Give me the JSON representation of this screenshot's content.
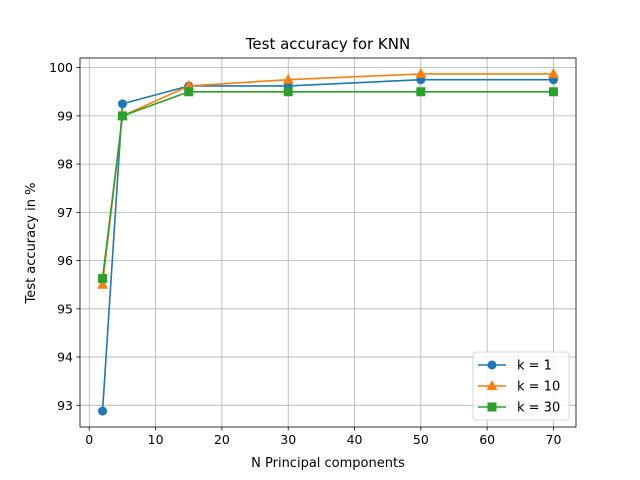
{
  "chart_data": {
    "type": "line",
    "title": "Test accuracy for KNN",
    "xlabel": "N Principal components",
    "ylabel": "Test accuracy in %",
    "xlim": [
      -1.4,
      73.4
    ],
    "ylim": [
      92.55,
      100.2
    ],
    "xticks": [
      0,
      10,
      20,
      30,
      40,
      50,
      60,
      70
    ],
    "yticks": [
      93,
      94,
      95,
      96,
      97,
      98,
      99,
      100
    ],
    "grid": true,
    "legend_position": "lower-right",
    "x": [
      2,
      5,
      15,
      30,
      50,
      70
    ],
    "series": [
      {
        "name": "k = 1",
        "values": [
          92.88,
          99.25,
          99.62,
          99.62,
          99.75,
          99.75
        ],
        "color": "#1f77b4",
        "marker": "circle"
      },
      {
        "name": "k = 10",
        "values": [
          95.5,
          99.0,
          99.62,
          99.75,
          99.87,
          99.87
        ],
        "color": "#ff7f0e",
        "marker": "triangle"
      },
      {
        "name": "k = 30",
        "values": [
          95.63,
          99.0,
          99.5,
          99.5,
          99.5,
          99.5
        ],
        "color": "#2ca02c",
        "marker": "square"
      }
    ]
  }
}
